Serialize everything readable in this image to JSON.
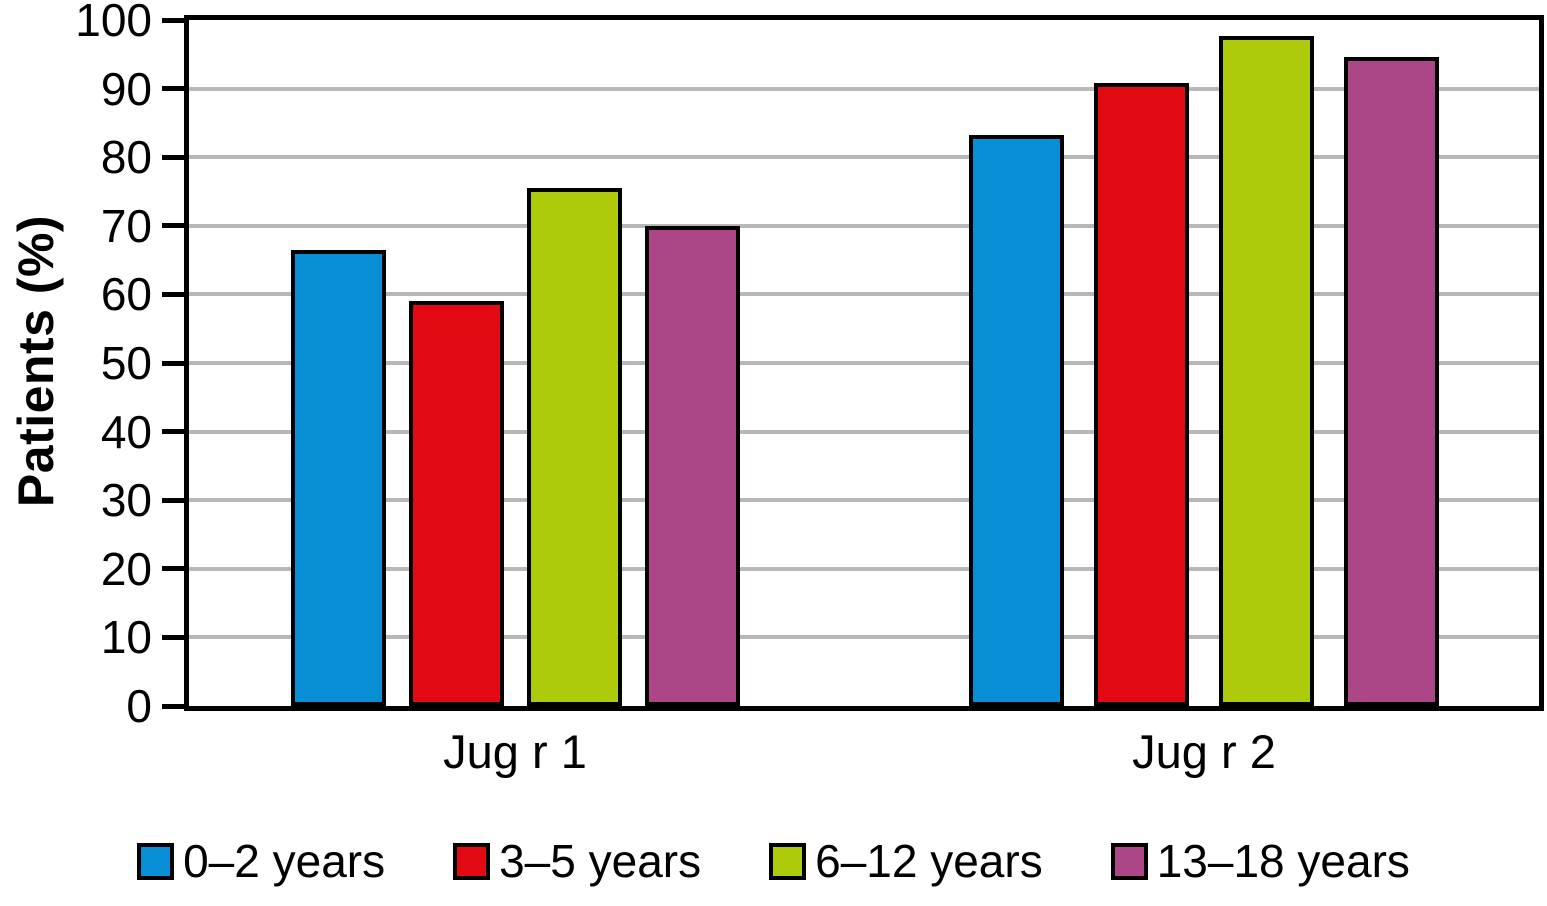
{
  "chart_data": {
    "type": "bar",
    "categories": [
      "Jug r 1",
      "Jug r 2"
    ],
    "series": [
      {
        "name": "0–2 years",
        "color": "#088ed4",
        "values": [
          66.5,
          83.3
        ]
      },
      {
        "name": "3–5 years",
        "color": "#e30913",
        "values": [
          59.0,
          90.8
        ]
      },
      {
        "name": "6–12 years",
        "color": "#aeca0b",
        "values": [
          75.5,
          97.7
        ]
      },
      {
        "name": "13–18 years",
        "color": "#ad4686",
        "values": [
          70.0,
          94.6
        ]
      }
    ],
    "title": "",
    "xlabel": "",
    "ylabel": "Patients (%)",
    "ylim": [
      0,
      100
    ],
    "ytick_step": 10,
    "ytick_labels": [
      "0",
      "10",
      "20",
      "30",
      "40",
      "50",
      "60",
      "70",
      "80",
      "90",
      "100"
    ],
    "grid": "horizontal",
    "gridline_color": "#b8b8b8",
    "frame_color": "#000000",
    "bar_border_color": "#000000",
    "legend_position": "bottom"
  }
}
